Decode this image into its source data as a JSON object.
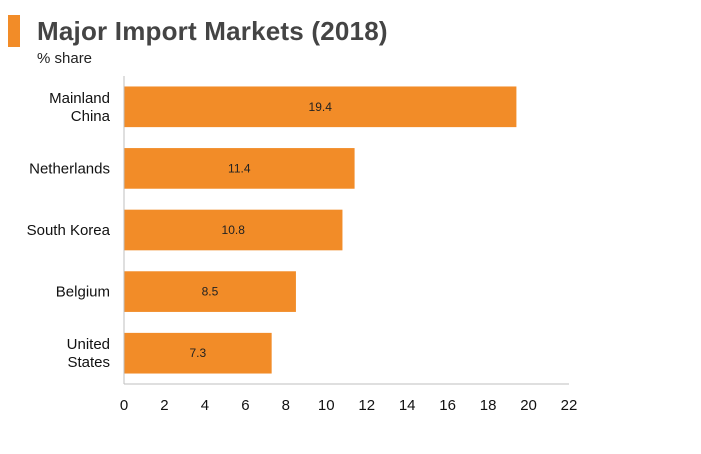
{
  "header": {
    "title": "Major Import Markets (2018)",
    "accent_color": "#f28c28"
  },
  "chart_data": {
    "type": "bar",
    "orientation": "horizontal",
    "title": "Major Import Markets (2018)",
    "subtitle": "% share",
    "xlabel": "",
    "ylabel": "",
    "categories": [
      [
        "Mainland",
        "China"
      ],
      [
        "Netherlands"
      ],
      [
        "South Korea"
      ],
      [
        "Belgium"
      ],
      [
        "United",
        "States"
      ]
    ],
    "values": [
      19.4,
      11.4,
      10.8,
      8.5,
      7.3
    ],
    "value_labels": [
      "19.4",
      "11.4",
      "10.8",
      "8.5",
      "7.3"
    ],
    "xlim": [
      0,
      22
    ],
    "xticks": [
      "0",
      "2",
      "4",
      "6",
      "8",
      "10",
      "12",
      "14",
      "16",
      "18",
      "20",
      "22"
    ],
    "bar_color": "#f28c28",
    "grid": false,
    "legend": "none"
  }
}
